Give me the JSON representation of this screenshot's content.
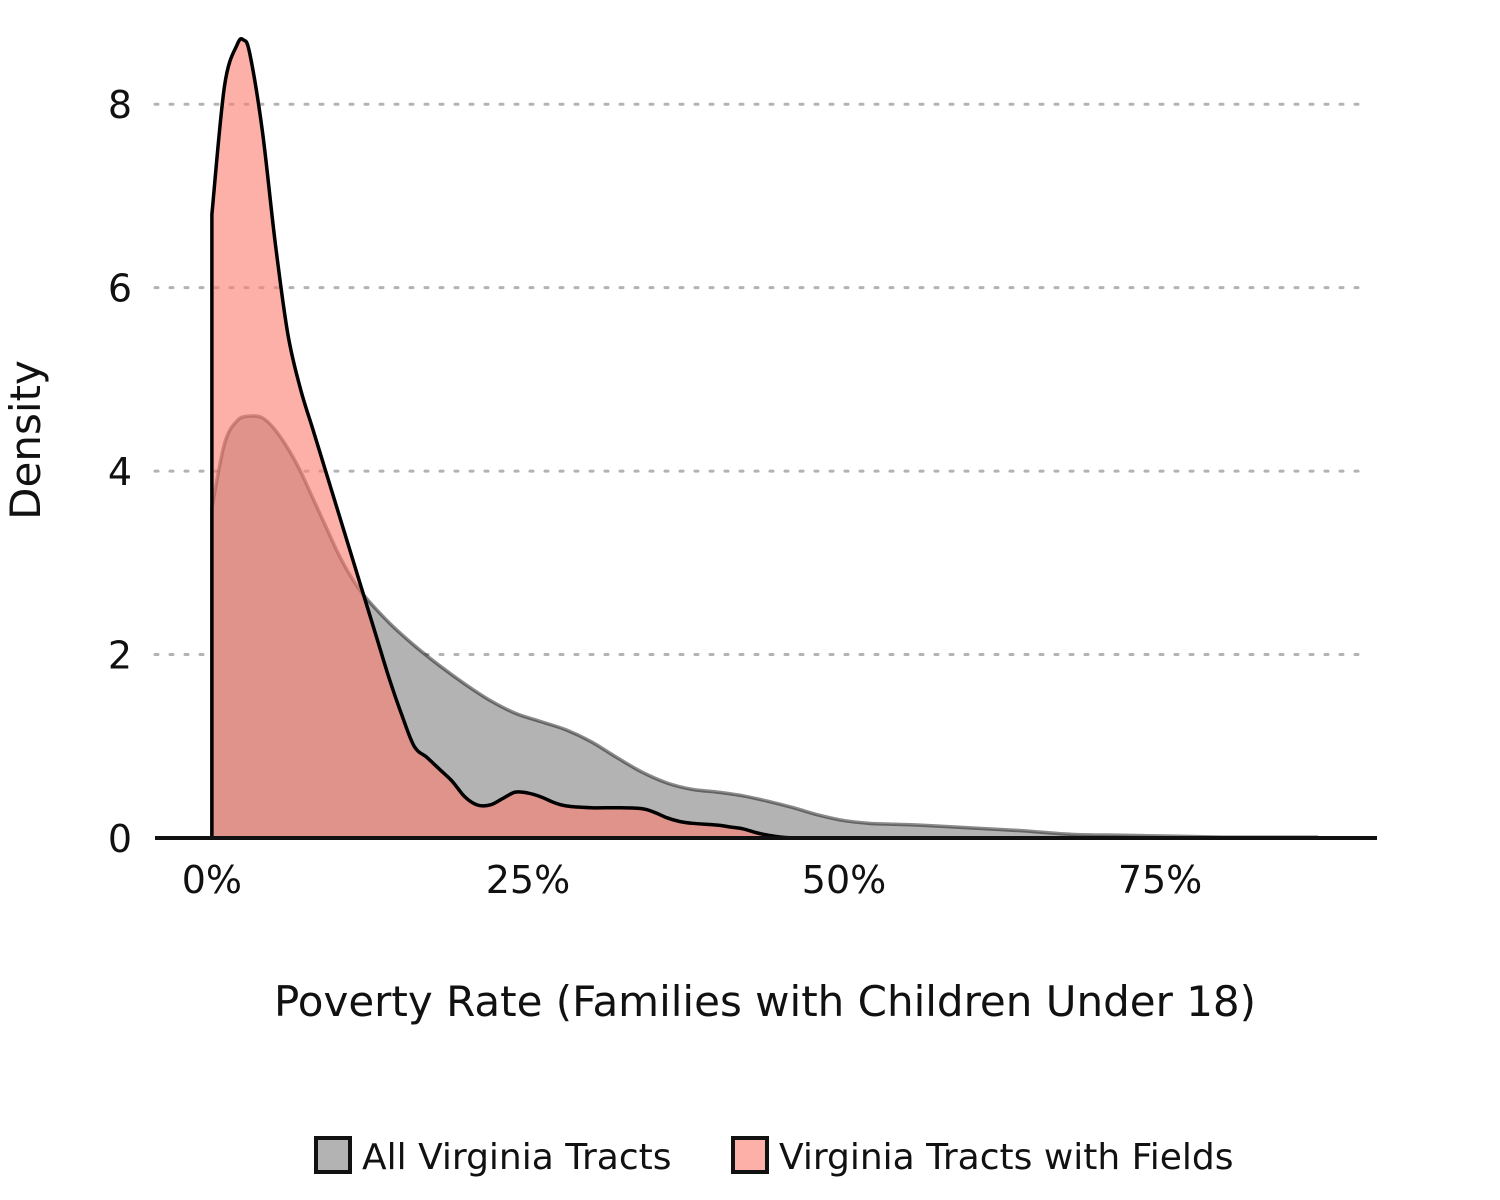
{
  "chart_data": {
    "type": "area",
    "title": "",
    "xlabel": "Poverty Rate (Families with Children Under 18)",
    "ylabel": "Density",
    "xlim": [
      -0.045,
      0.92
    ],
    "ylim": [
      0,
      8.7
    ],
    "x_ticks": [
      {
        "value": 0.0,
        "label": "0%"
      },
      {
        "value": 0.25,
        "label": "25%"
      },
      {
        "value": 0.5,
        "label": "50%"
      },
      {
        "value": 0.75,
        "label": "75%"
      }
    ],
    "y_ticks": [
      {
        "value": 0,
        "label": "0"
      },
      {
        "value": 2,
        "label": "2"
      },
      {
        "value": 4,
        "label": "4"
      },
      {
        "value": 6,
        "label": "6"
      },
      {
        "value": 8,
        "label": "8"
      }
    ],
    "grid": {
      "horizontal": true,
      "vertical": false,
      "style": "dotted"
    },
    "legend": {
      "position": "bottom"
    },
    "series": [
      {
        "name": "All Virginia Tracts",
        "fill": "#b3b3b3",
        "line": "#000000",
        "points": [
          [
            0.0,
            3.6
          ],
          [
            0.01,
            4.3
          ],
          [
            0.02,
            4.55
          ],
          [
            0.03,
            4.6
          ],
          [
            0.04,
            4.58
          ],
          [
            0.05,
            4.45
          ],
          [
            0.06,
            4.25
          ],
          [
            0.07,
            4.0
          ],
          [
            0.08,
            3.7
          ],
          [
            0.09,
            3.4
          ],
          [
            0.1,
            3.1
          ],
          [
            0.11,
            2.85
          ],
          [
            0.12,
            2.65
          ],
          [
            0.14,
            2.35
          ],
          [
            0.16,
            2.1
          ],
          [
            0.18,
            1.88
          ],
          [
            0.2,
            1.68
          ],
          [
            0.22,
            1.5
          ],
          [
            0.24,
            1.36
          ],
          [
            0.26,
            1.27
          ],
          [
            0.28,
            1.18
          ],
          [
            0.3,
            1.05
          ],
          [
            0.32,
            0.88
          ],
          [
            0.34,
            0.72
          ],
          [
            0.36,
            0.6
          ],
          [
            0.38,
            0.53
          ],
          [
            0.4,
            0.5
          ],
          [
            0.42,
            0.46
          ],
          [
            0.44,
            0.4
          ],
          [
            0.46,
            0.33
          ],
          [
            0.48,
            0.25
          ],
          [
            0.5,
            0.19
          ],
          [
            0.52,
            0.16
          ],
          [
            0.54,
            0.15
          ],
          [
            0.56,
            0.14
          ],
          [
            0.6,
            0.11
          ],
          [
            0.64,
            0.08
          ],
          [
            0.68,
            0.04
          ],
          [
            0.72,
            0.03
          ],
          [
            0.76,
            0.02
          ],
          [
            0.8,
            0.01
          ],
          [
            0.84,
            0.01
          ],
          [
            0.875,
            0.01
          ]
        ]
      },
      {
        "name": "Virginia Tracts with Fields",
        "fill": "#fb8072",
        "line": "#000000",
        "points": [
          [
            0.0,
            6.8
          ],
          [
            0.01,
            8.2
          ],
          [
            0.02,
            8.65
          ],
          [
            0.025,
            8.7
          ],
          [
            0.03,
            8.55
          ],
          [
            0.04,
            7.7
          ],
          [
            0.05,
            6.5
          ],
          [
            0.06,
            5.5
          ],
          [
            0.07,
            4.9
          ],
          [
            0.08,
            4.45
          ],
          [
            0.09,
            4.0
          ],
          [
            0.1,
            3.55
          ],
          [
            0.11,
            3.1
          ],
          [
            0.12,
            2.65
          ],
          [
            0.13,
            2.2
          ],
          [
            0.14,
            1.75
          ],
          [
            0.15,
            1.35
          ],
          [
            0.16,
            1.0
          ],
          [
            0.17,
            0.88
          ],
          [
            0.18,
            0.75
          ],
          [
            0.19,
            0.62
          ],
          [
            0.2,
            0.45
          ],
          [
            0.21,
            0.36
          ],
          [
            0.22,
            0.36
          ],
          [
            0.23,
            0.43
          ],
          [
            0.24,
            0.5
          ],
          [
            0.25,
            0.49
          ],
          [
            0.26,
            0.45
          ],
          [
            0.27,
            0.39
          ],
          [
            0.28,
            0.35
          ],
          [
            0.3,
            0.33
          ],
          [
            0.32,
            0.33
          ],
          [
            0.34,
            0.32
          ],
          [
            0.35,
            0.28
          ],
          [
            0.36,
            0.22
          ],
          [
            0.37,
            0.18
          ],
          [
            0.38,
            0.16
          ],
          [
            0.4,
            0.14
          ],
          [
            0.41,
            0.12
          ],
          [
            0.42,
            0.1
          ],
          [
            0.43,
            0.06
          ],
          [
            0.44,
            0.03
          ],
          [
            0.45,
            0.01
          ],
          [
            0.46,
            0.0
          ]
        ]
      }
    ]
  }
}
